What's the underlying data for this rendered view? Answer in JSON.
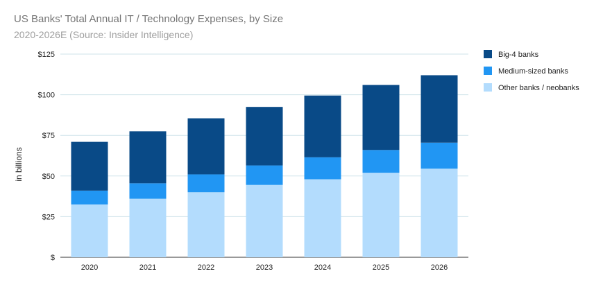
{
  "chart_data": {
    "type": "bar",
    "stacked": true,
    "title": "US Banks' Total Annual IT / Technology Expenses, by Size",
    "subtitle": "2020-2026E (Source: Insider Intelligence)",
    "xlabel": "",
    "ylabel": "in billions",
    "ylim": [
      0,
      125
    ],
    "yticks": [
      0,
      25,
      50,
      75,
      100,
      125
    ],
    "ytick_labels": [
      "$",
      "$25",
      "$50",
      "$75",
      "$100",
      "$125"
    ],
    "categories": [
      "2020",
      "2021",
      "2022",
      "2023",
      "2024",
      "2025",
      "2026"
    ],
    "series": [
      {
        "name": "Other banks / neobanks",
        "color": "#b3dcfd",
        "values": [
          32.5,
          36,
          40,
          44.5,
          48,
          52,
          54.5
        ]
      },
      {
        "name": "Medium-sized banks",
        "color": "#2196f3",
        "values": [
          8.5,
          9.5,
          11,
          12,
          13.5,
          14,
          16
        ]
      },
      {
        "name": "Big-4 banks",
        "color": "#094a87",
        "values": [
          30,
          32,
          34.5,
          36,
          38,
          40,
          41.5
        ]
      }
    ],
    "legend_order": [
      "Big-4 banks",
      "Medium-sized banks",
      "Other banks / neobanks"
    ],
    "legend_position": "right",
    "grid": true
  }
}
